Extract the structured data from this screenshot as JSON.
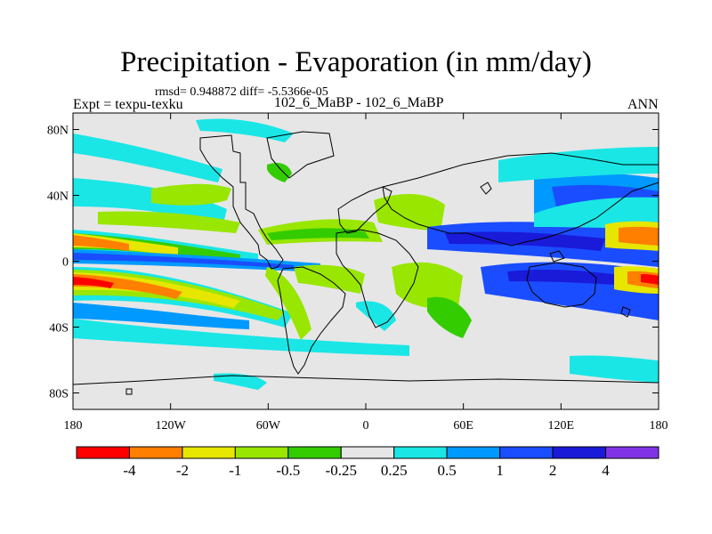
{
  "title": "Precipitation - Evaporation (in mm/day)",
  "stats": "rmsd= 0.948872 diff= -5.5366e-05",
  "expt": "Expt = texpu-texku",
  "subtitle": "102_6_MaBP - 102_6_MaBP",
  "season": "ANN",
  "map": {
    "lon_range": [
      -180,
      180
    ],
    "lat_range": [
      -90,
      90
    ],
    "lon_ticks": [
      {
        "lon": -180,
        "label": "180"
      },
      {
        "lon": -120,
        "label": "120W"
      },
      {
        "lon": -60,
        "label": "60W"
      },
      {
        "lon": 0,
        "label": "0"
      },
      {
        "lon": 60,
        "label": "60E"
      },
      {
        "lon": 120,
        "label": "120E"
      },
      {
        "lon": 180,
        "label": "180"
      }
    ],
    "lat_ticks": [
      {
        "lat": 80,
        "label": "80N"
      },
      {
        "lat": 40,
        "label": "40N"
      },
      {
        "lat": 0,
        "label": "0"
      },
      {
        "lat": -40,
        "label": "40S"
      },
      {
        "lat": -80,
        "label": "80S"
      }
    ],
    "background_color": "#e6e6e6"
  },
  "colorbar": {
    "levels": [
      "-4",
      "-2",
      "-1",
      "-0.5",
      "-0.25",
      "0.25",
      "0.5",
      "1",
      "2",
      "4"
    ],
    "colors": [
      "#ff0000",
      "#ff7f00",
      "#e6e600",
      "#99e600",
      "#33cc00",
      "#e6e6e6",
      "#1ae6e6",
      "#0099ff",
      "#1a4dff",
      "#1a1ad9",
      "#8033e6"
    ]
  }
}
